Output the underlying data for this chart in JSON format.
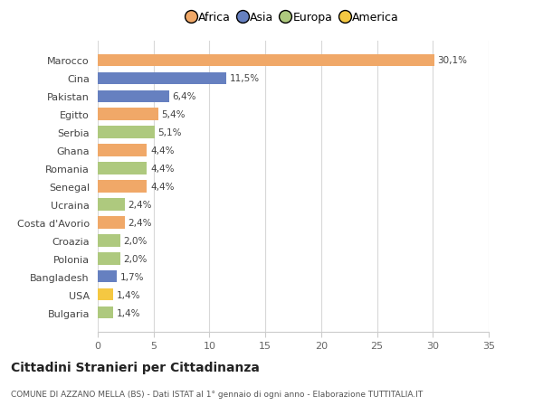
{
  "categories": [
    "Bulgaria",
    "USA",
    "Bangladesh",
    "Polonia",
    "Croazia",
    "Costa d'Avorio",
    "Ucraina",
    "Senegal",
    "Romania",
    "Ghana",
    "Serbia",
    "Egitto",
    "Pakistan",
    "Cina",
    "Marocco"
  ],
  "values": [
    1.4,
    1.4,
    1.7,
    2.0,
    2.0,
    2.4,
    2.4,
    4.4,
    4.4,
    4.4,
    5.1,
    5.4,
    6.4,
    11.5,
    30.1
  ],
  "labels": [
    "1,4%",
    "1,4%",
    "1,7%",
    "2,0%",
    "2,0%",
    "2,4%",
    "2,4%",
    "4,4%",
    "4,4%",
    "4,4%",
    "5,1%",
    "5,4%",
    "6,4%",
    "11,5%",
    "30,1%"
  ],
  "colors": [
    "#aec97e",
    "#f5c842",
    "#6680c0",
    "#aec97e",
    "#aec97e",
    "#f0a868",
    "#aec97e",
    "#f0a868",
    "#aec97e",
    "#f0a868",
    "#aec97e",
    "#f0a868",
    "#6680c0",
    "#6680c0",
    "#f0a868"
  ],
  "continent_colors": {
    "Africa": "#f0a868",
    "Asia": "#6680c0",
    "Europa": "#aec97e",
    "America": "#f5c842"
  },
  "xlim": [
    0,
    35
  ],
  "xticks": [
    0,
    5,
    10,
    15,
    20,
    25,
    30,
    35
  ],
  "title": "Cittadini Stranieri per Cittadinanza",
  "subtitle": "COMUNE DI AZZANO MELLA (BS) - Dati ISTAT al 1° gennaio di ogni anno - Elaborazione TUTTITALIA.IT",
  "fig_bg": "#ffffff",
  "plot_bg": "#ffffff"
}
